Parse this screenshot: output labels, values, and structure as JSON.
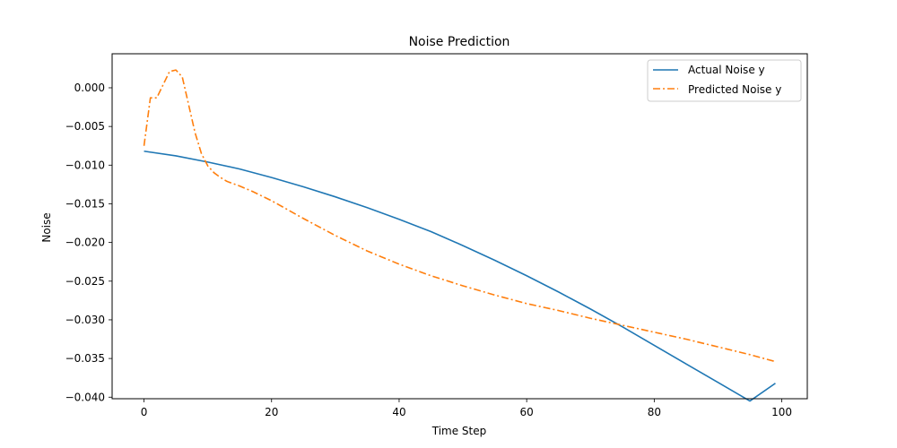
{
  "chart_data": {
    "type": "line",
    "title": "Noise Prediction",
    "xlabel": "Time Step",
    "ylabel": "Noise",
    "xlim": [
      -5,
      104
    ],
    "ylim": [
      -0.0402,
      0.0044
    ],
    "xticks": [
      0,
      20,
      40,
      60,
      80,
      100
    ],
    "yticks": [
      0.0,
      -0.005,
      -0.01,
      -0.015,
      -0.02,
      -0.025,
      -0.03,
      -0.035,
      -0.04
    ],
    "xtick_labels": [
      "0",
      "20",
      "40",
      "60",
      "80",
      "100"
    ],
    "ytick_labels": [
      "0.000",
      "−0.005",
      "−0.010",
      "−0.015",
      "−0.020",
      "−0.025",
      "−0.030",
      "−0.035",
      "−0.040"
    ],
    "grid": false,
    "legend_position": "top-right",
    "series": [
      {
        "name": "Actual Noise y",
        "color": "#1f77b4",
        "style": "solid",
        "x": [
          0,
          5,
          10,
          15,
          20,
          25,
          30,
          35,
          40,
          45,
          50,
          55,
          60,
          65,
          70,
          75,
          80,
          85,
          90,
          95,
          99
        ],
        "y": [
          -0.0082,
          -0.0088,
          -0.0096,
          -0.0105,
          -0.0116,
          -0.0128,
          -0.0141,
          -0.0155,
          -0.017,
          -0.0186,
          -0.0204,
          -0.0223,
          -0.0243,
          -0.0264,
          -0.0286,
          -0.0309,
          -0.0333,
          -0.0357,
          -0.0381,
          -0.0405,
          -0.0382
        ]
      },
      {
        "name": "Predicted Noise y",
        "color": "#ff7f0e",
        "style": "dashdot",
        "x": [
          0,
          1,
          2,
          3,
          4,
          5,
          6,
          7,
          8,
          9,
          10,
          11,
          12,
          13,
          15,
          17,
          20,
          25,
          30,
          35,
          40,
          45,
          50,
          55,
          60,
          65,
          70,
          75,
          80,
          85,
          90,
          95,
          99
        ],
        "y": [
          -0.0075,
          -0.0013,
          -0.0013,
          0.0004,
          0.0021,
          0.0023,
          0.0014,
          -0.0022,
          -0.0058,
          -0.0085,
          -0.0101,
          -0.011,
          -0.0116,
          -0.0121,
          -0.0127,
          -0.0134,
          -0.0146,
          -0.0169,
          -0.0191,
          -0.0211,
          -0.0228,
          -0.0243,
          -0.0256,
          -0.0268,
          -0.0279,
          -0.0288,
          -0.0298,
          -0.0307,
          -0.0316,
          -0.0325,
          -0.0335,
          -0.0345,
          -0.0354
        ]
      }
    ]
  }
}
